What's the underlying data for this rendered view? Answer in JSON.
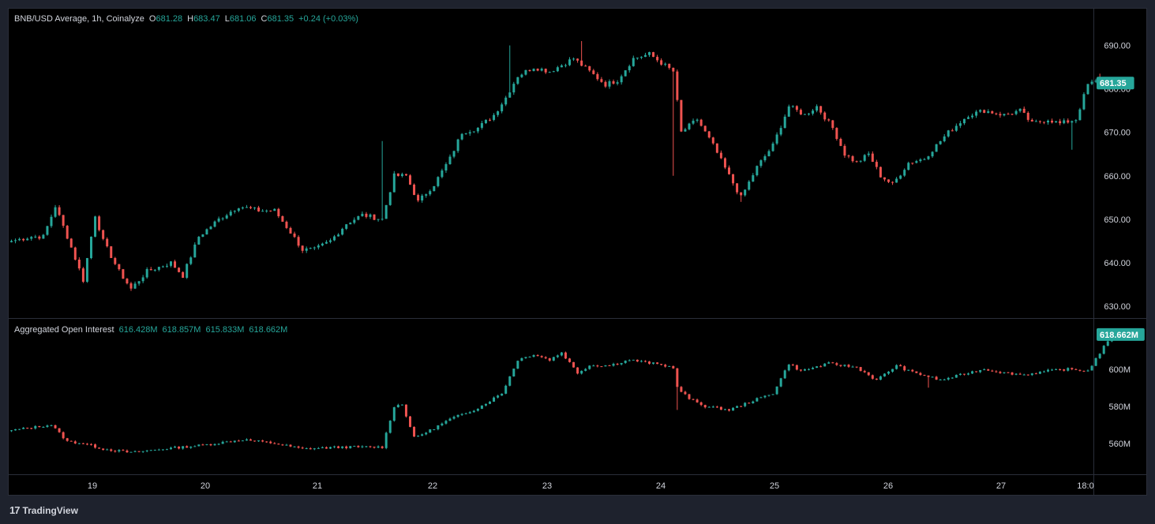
{
  "price_legend": {
    "title": "BNB/USD Average, 1h, Coinalyze",
    "o_key": "O",
    "o_val": "681.28",
    "h_key": "H",
    "h_val": "683.47",
    "l_key": "L",
    "l_val": "681.06",
    "c_key": "C",
    "c_val": "681.35",
    "change": "+0.24 (+0.03%)"
  },
  "oi_legend": {
    "title": "Aggregated Open Interest",
    "o": "616.428M",
    "h": "618.857M",
    "l": "615.833M",
    "c": "618.662M"
  },
  "footer": {
    "brand": "TradingView",
    "logo_glyph": "17"
  },
  "colors": {
    "up": "#26a69a",
    "down": "#ef5350",
    "background": "#000000",
    "text": "#d1d4dc",
    "axis_border": "#2a2e39"
  },
  "chart_data": [
    {
      "type": "candlestick",
      "title": "BNB/USD Average, 1h, Coinalyze",
      "ylim": [
        628,
        697
      ],
      "y_ticks": [
        "690.00",
        "680.00",
        "670.00",
        "660.00",
        "650.00",
        "640.00",
        "630.00"
      ],
      "last_price": "681.35",
      "x_ticks": [
        "19",
        "20",
        "21",
        "22",
        "23",
        "24",
        "25",
        "26",
        "27",
        "18:0"
      ],
      "anchors": [
        [
          0,
          645
        ],
        [
          5,
          646
        ],
        [
          8,
          646
        ],
        [
          11,
          653
        ],
        [
          14,
          646
        ],
        [
          18,
          636
        ],
        [
          21,
          651
        ],
        [
          23,
          645
        ],
        [
          27,
          638
        ],
        [
          30,
          634
        ],
        [
          34,
          638
        ],
        [
          40,
          640
        ],
        [
          43,
          637
        ],
        [
          47,
          646
        ],
        [
          52,
          650
        ],
        [
          57,
          653
        ],
        [
          62,
          652
        ],
        [
          66,
          652
        ],
        [
          70,
          647
        ],
        [
          73,
          643
        ],
        [
          76,
          643
        ],
        [
          80,
          645
        ],
        [
          84,
          649
        ],
        [
          88,
          651
        ],
        [
          93,
          650
        ],
        [
          96,
          660
        ],
        [
          99,
          660
        ],
        [
          102,
          654
        ],
        [
          106,
          658
        ],
        [
          110,
          664
        ],
        [
          113,
          670
        ],
        [
          117,
          671
        ],
        [
          121,
          674
        ],
        [
          124,
          678
        ],
        [
          127,
          683
        ],
        [
          131,
          685
        ],
        [
          135,
          684
        ],
        [
          141,
          687
        ],
        [
          145,
          684
        ],
        [
          149,
          681
        ],
        [
          152,
          682
        ],
        [
          156,
          687
        ],
        [
          160,
          688
        ],
        [
          163,
          686
        ],
        [
          166,
          684
        ],
        [
          168,
          670
        ],
        [
          172,
          673
        ],
        [
          176,
          667
        ],
        [
          180,
          660
        ],
        [
          183,
          655
        ],
        [
          187,
          662
        ],
        [
          191,
          667
        ],
        [
          195,
          676
        ],
        [
          199,
          674
        ],
        [
          202,
          676
        ],
        [
          206,
          671
        ],
        [
          209,
          665
        ],
        [
          212,
          663
        ],
        [
          215,
          665
        ],
        [
          218,
          660
        ],
        [
          221,
          658
        ],
        [
          225,
          663
        ],
        [
          229,
          664
        ],
        [
          232,
          667
        ],
        [
          235,
          670
        ],
        [
          240,
          674
        ],
        [
          244,
          675
        ],
        [
          249,
          674
        ],
        [
          253,
          675
        ],
        [
          256,
          672
        ],
        [
          260,
          673
        ],
        [
          263,
          672
        ],
        [
          267,
          673
        ],
        [
          270,
          681
        ],
        [
          273,
          682
        ]
      ],
      "spikes": [
        [
          93,
          668,
          "high"
        ],
        [
          125,
          690,
          "high"
        ],
        [
          143,
          691,
          "high"
        ],
        [
          166,
          660,
          "low"
        ],
        [
          183,
          654,
          "low"
        ],
        [
          266,
          666,
          "low"
        ],
        [
          273,
          683.5,
          "high"
        ]
      ]
    },
    {
      "type": "candlestick",
      "title": "Aggregated Open Interest",
      "ylim": [
        545,
        625
      ],
      "y_ticks": [
        "600M",
        "580M",
        "560M"
      ],
      "last_value": "618.662M",
      "anchors": [
        [
          0,
          567
        ],
        [
          10,
          570
        ],
        [
          14,
          561
        ],
        [
          18,
          560
        ],
        [
          23,
          557
        ],
        [
          30,
          555
        ],
        [
          38,
          557
        ],
        [
          48,
          559
        ],
        [
          58,
          562
        ],
        [
          66,
          560
        ],
        [
          73,
          557
        ],
        [
          83,
          558
        ],
        [
          93,
          558
        ],
        [
          96,
          580
        ],
        [
          98,
          581
        ],
        [
          101,
          563
        ],
        [
          105,
          567
        ],
        [
          110,
          573
        ],
        [
          117,
          579
        ],
        [
          123,
          587
        ],
        [
          127,
          605
        ],
        [
          131,
          608
        ],
        [
          135,
          605
        ],
        [
          138,
          609
        ],
        [
          142,
          598
        ],
        [
          145,
          602
        ],
        [
          150,
          602
        ],
        [
          155,
          605
        ],
        [
          161,
          603
        ],
        [
          166,
          601
        ],
        [
          167,
          590
        ],
        [
          170,
          584
        ],
        [
          174,
          580
        ],
        [
          180,
          578
        ],
        [
          186,
          583
        ],
        [
          191,
          587
        ],
        [
          195,
          603
        ],
        [
          198,
          599
        ],
        [
          205,
          603
        ],
        [
          212,
          601
        ],
        [
          217,
          594
        ],
        [
          222,
          602
        ],
        [
          225,
          599
        ],
        [
          230,
          596
        ],
        [
          233,
          594
        ],
        [
          240,
          598
        ],
        [
          244,
          600
        ],
        [
          249,
          598
        ],
        [
          254,
          597
        ],
        [
          260,
          599
        ],
        [
          265,
          600
        ],
        [
          270,
          599
        ],
        [
          274,
          612
        ],
        [
          276,
          617
        ]
      ],
      "spikes": [
        [
          167,
          578,
          "low"
        ],
        [
          230,
          590,
          "low"
        ]
      ]
    }
  ]
}
